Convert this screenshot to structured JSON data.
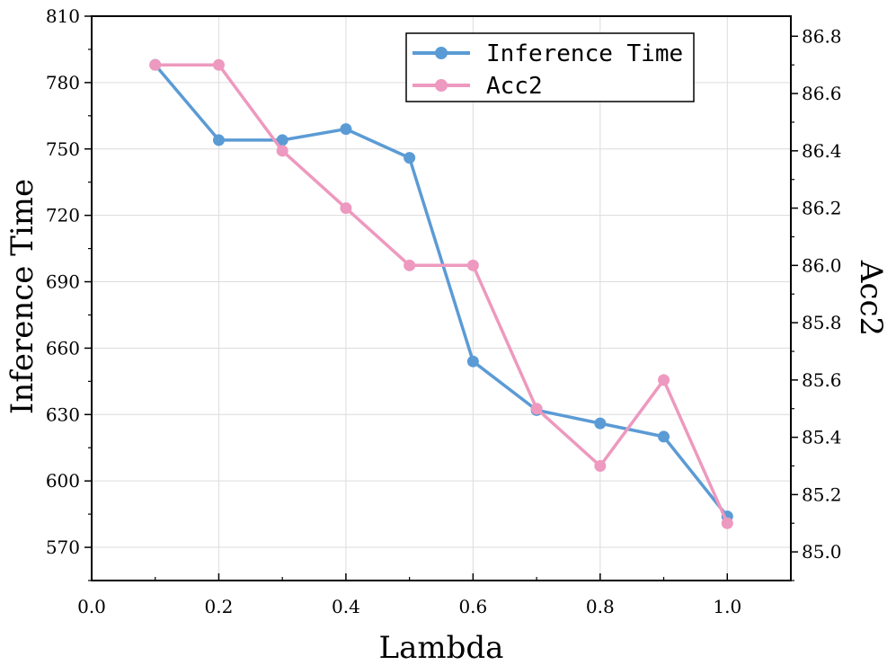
{
  "chart_data": {
    "type": "line",
    "xlabel": "Lambda",
    "ylabel_left": "Inference Time",
    "ylabel_right": "Acc2",
    "xlim": [
      0.0,
      1.1
    ],
    "ylim_left": [
      555,
      810
    ],
    "ylim_right": [
      84.9,
      86.87
    ],
    "xticks": [
      0.0,
      0.2,
      0.4,
      0.6,
      0.8,
      1.0
    ],
    "xtick_labels": [
      "0.0",
      "0.2",
      "0.4",
      "0.6",
      "0.8",
      "1.0"
    ],
    "yticks_left": [
      570,
      600,
      630,
      660,
      690,
      720,
      750,
      780,
      810
    ],
    "ytick_labels_left": [
      "570",
      "600",
      "630",
      "660",
      "690",
      "720",
      "750",
      "780",
      "810"
    ],
    "yticks_right": [
      85.0,
      85.2,
      85.4,
      85.6,
      85.8,
      86.0,
      86.2,
      86.4,
      86.6,
      86.8
    ],
    "ytick_labels_right": [
      "85.0",
      "85.2",
      "85.4",
      "85.6",
      "85.8",
      "86.0",
      "86.2",
      "86.4",
      "86.6",
      "86.8"
    ],
    "grid": true,
    "legend_position": "top-right",
    "series": [
      {
        "name": "Inference Time",
        "axis": "left",
        "color": "#5b9bd5",
        "x": [
          0.1,
          0.2,
          0.3,
          0.4,
          0.5,
          0.6,
          0.7,
          0.8,
          0.9,
          1.0
        ],
        "values": [
          788,
          754,
          754,
          759,
          746,
          654,
          632,
          626,
          620,
          584
        ]
      },
      {
        "name": "Acc2",
        "axis": "right",
        "color": "#ee99bf",
        "x": [
          0.1,
          0.2,
          0.3,
          0.4,
          0.5,
          0.6,
          0.7,
          0.8,
          0.9,
          1.0
        ],
        "values": [
          86.7,
          86.7,
          86.4,
          86.2,
          86.0,
          86.0,
          85.5,
          85.3,
          85.6,
          85.1
        ]
      }
    ]
  }
}
